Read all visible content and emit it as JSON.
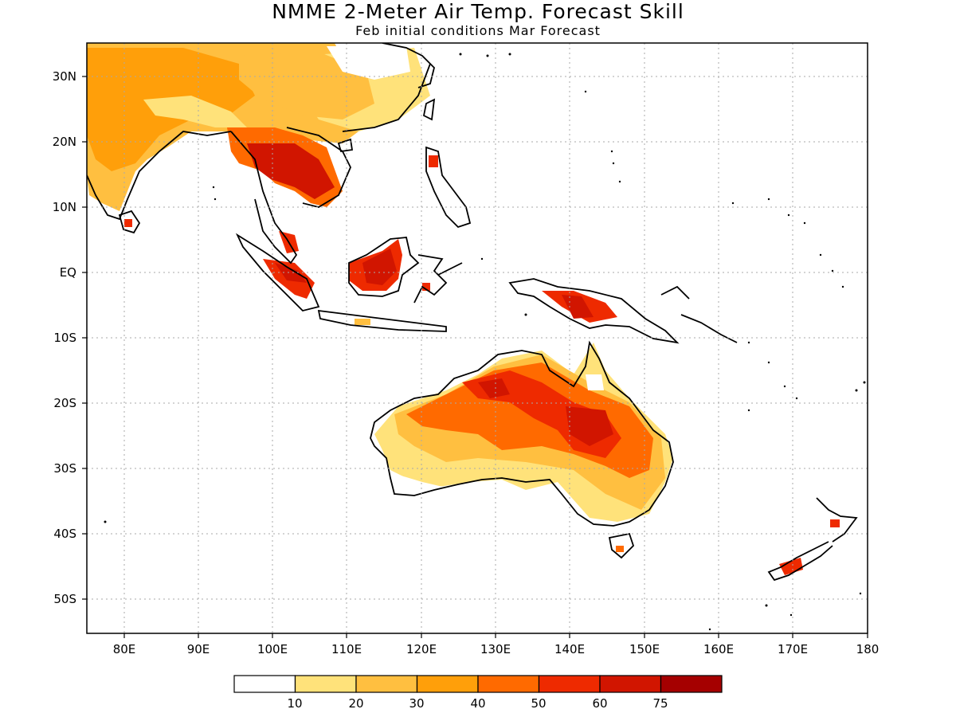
{
  "title": "NMME 2-Meter Air Temp. Forecast Skill",
  "subtitle": "Feb initial conditions  Mar Forecast",
  "map": {
    "lon_range": [
      75,
      180
    ],
    "lat_range": [
      -55,
      35
    ],
    "lon_ticks": [
      "80E",
      "90E",
      "100E",
      "110E",
      "120E",
      "130E",
      "140E",
      "150E",
      "160E",
      "170E",
      "180"
    ],
    "lat_ticks": [
      "30N",
      "20N",
      "10N",
      "EQ",
      "10S",
      "20S",
      "30S",
      "40S",
      "50S"
    ],
    "grid": "dotted"
  },
  "colorbar": {
    "colors": [
      "#ffffff",
      "#ffe27a",
      "#ffbf40",
      "#ff9f0a",
      "#ff6a00",
      "#ee2a00",
      "#d11500",
      "#a50000"
    ],
    "labels": [
      "10",
      "20",
      "30",
      "40",
      "50",
      "60",
      "75"
    ]
  }
}
